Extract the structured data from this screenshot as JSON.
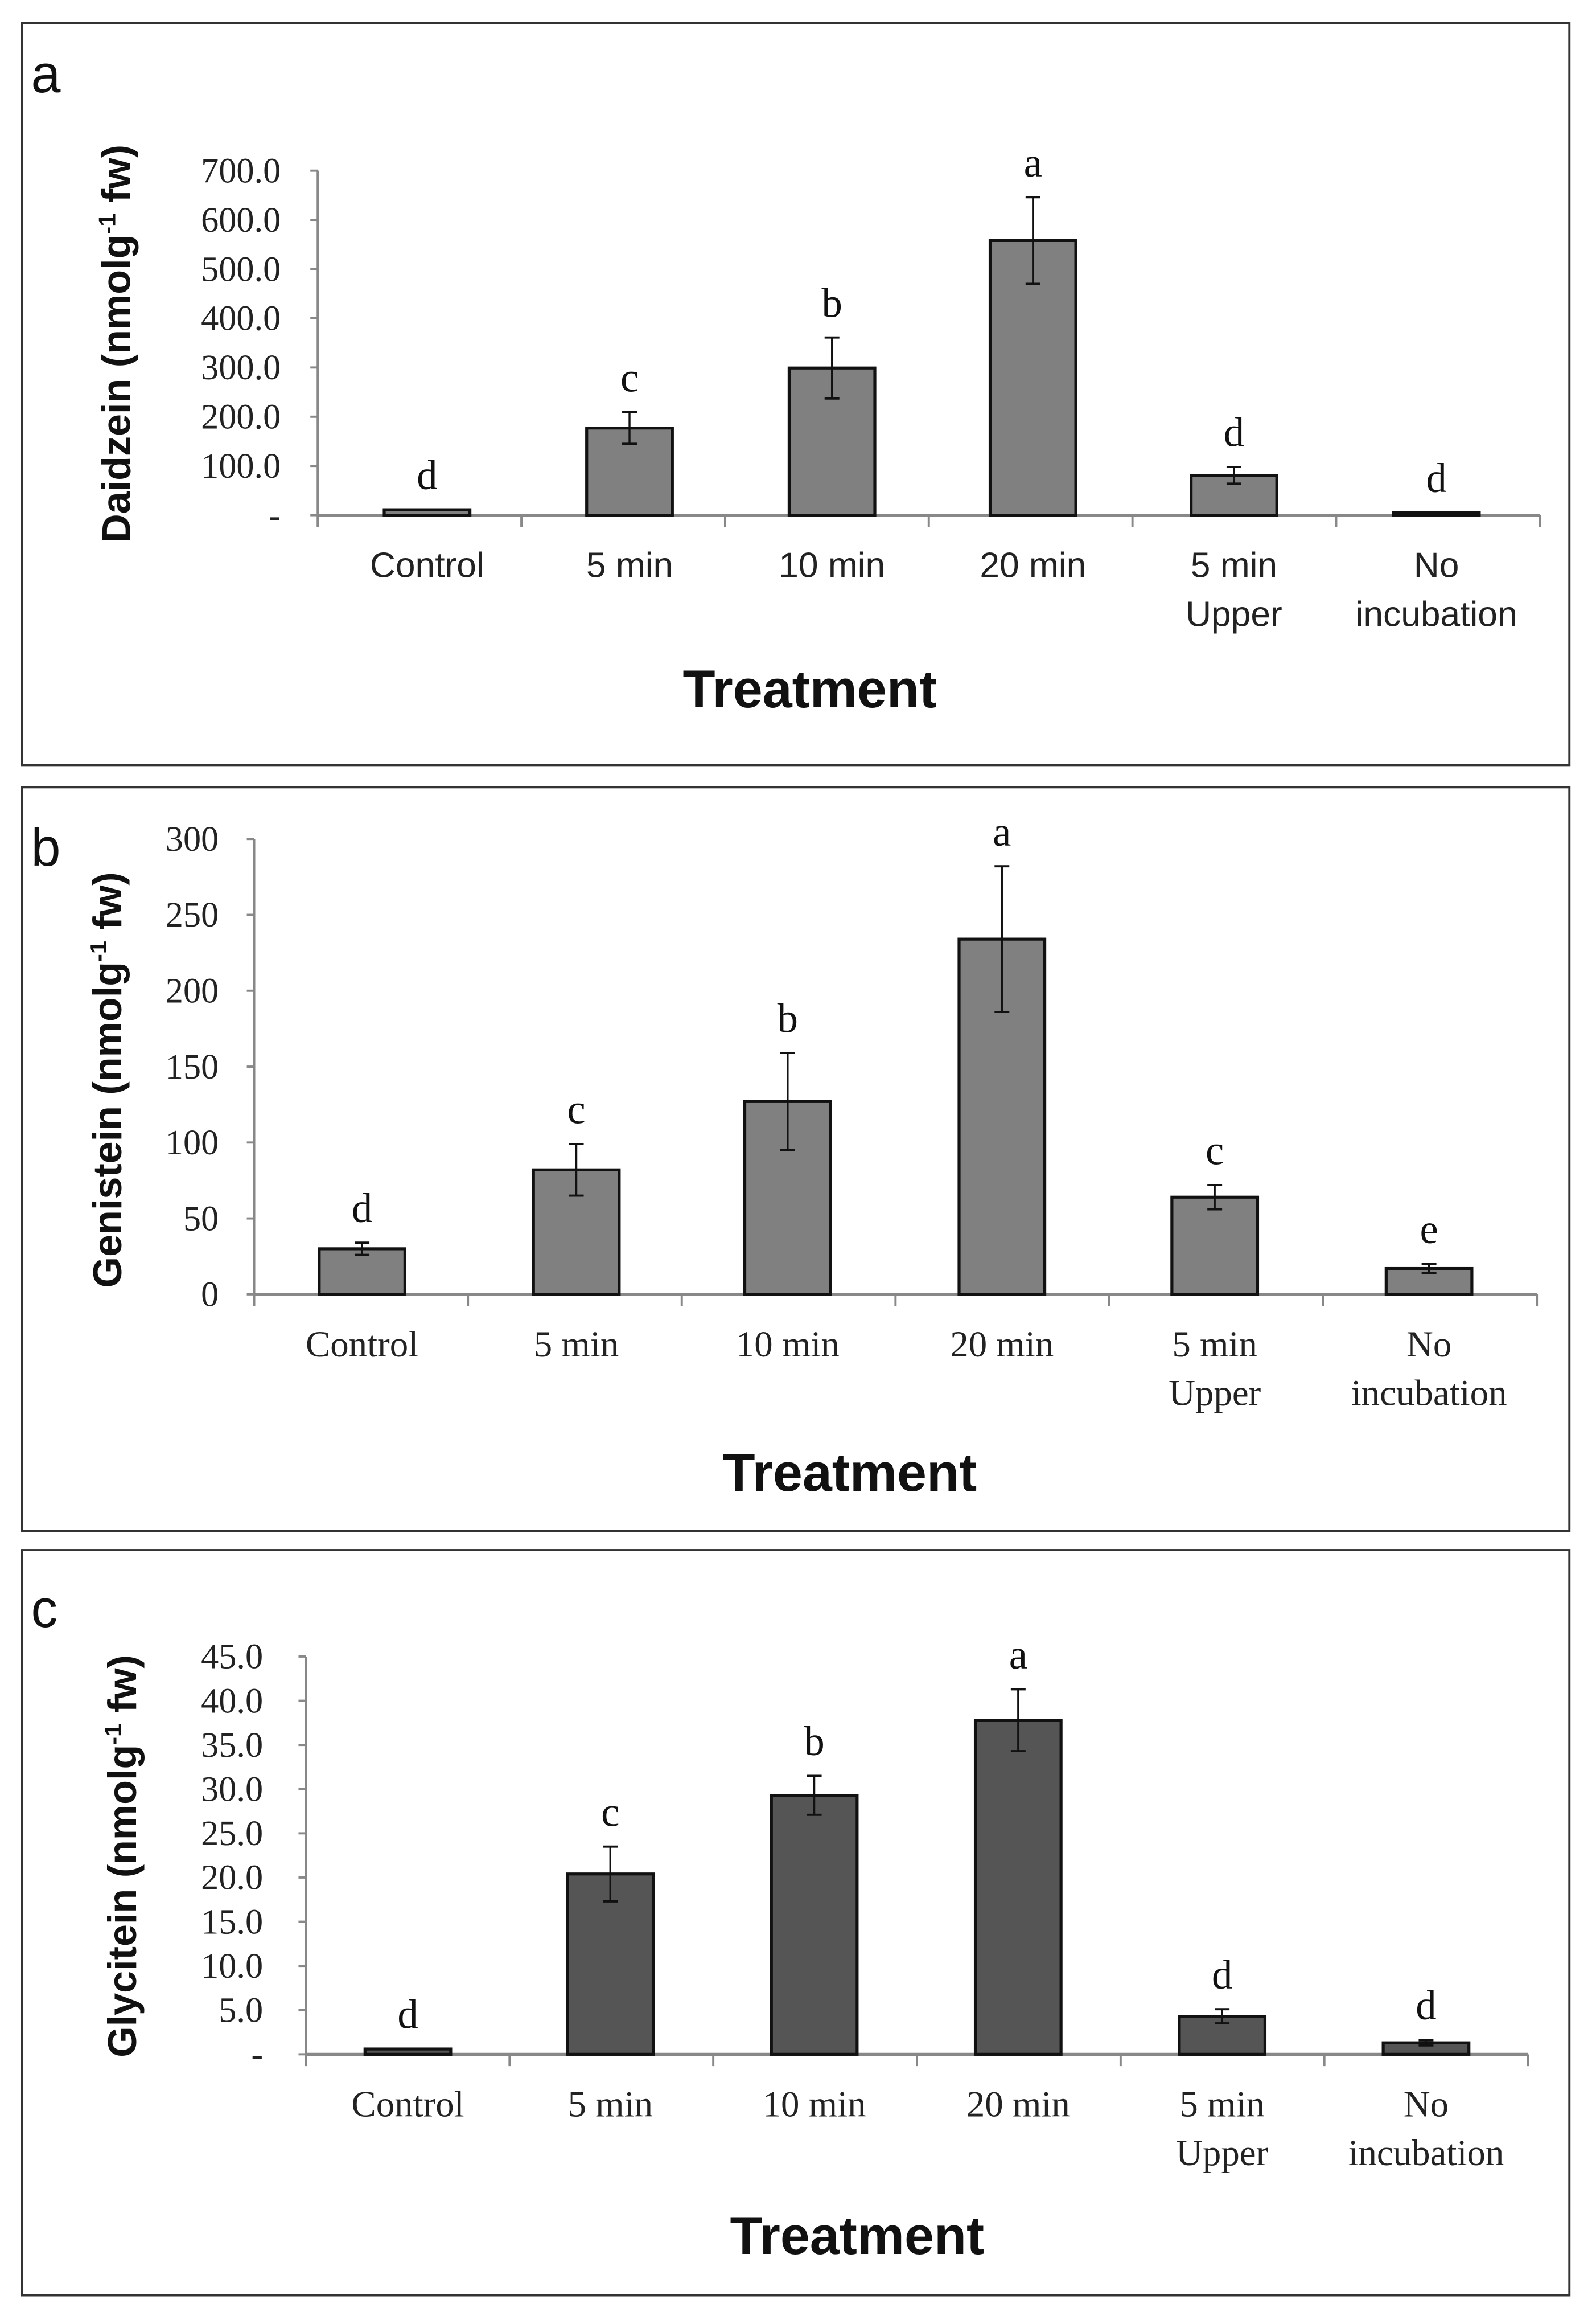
{
  "chart_data": [
    {
      "panel_label": "a",
      "type": "bar",
      "categories": [
        [
          "Control"
        ],
        [
          "5 min"
        ],
        [
          "10 min"
        ],
        [
          "20 min"
        ],
        [
          "5 min",
          "Upper"
        ],
        [
          "No",
          "incubation"
        ]
      ],
      "values": [
        11,
        177,
        299,
        558,
        81,
        5
      ],
      "errors": [
        0,
        32,
        62,
        88,
        17,
        0
      ],
      "significance": [
        "d",
        "c",
        "b",
        "a",
        "d",
        "d"
      ],
      "xlabel": "Treatment",
      "ylabel": "Daidzein (nmolg",
      "ylabel_sup": "-1",
      "ylabel_end": " fw)",
      "ylim": [
        0,
        700
      ],
      "yticks": [
        0,
        100,
        200,
        300,
        400,
        500,
        600,
        700
      ],
      "ytick_labels": [
        "-",
        "100.0",
        "200.0",
        "300.0",
        "400.0",
        "500.0",
        "600.0",
        "700.0"
      ],
      "bar_color": "#808080",
      "grid": false
    },
    {
      "panel_label": "b",
      "type": "bar",
      "categories": [
        [
          "Control"
        ],
        [
          "5 min"
        ],
        [
          "10 min"
        ],
        [
          "20 min"
        ],
        [
          "5 min",
          "Upper"
        ],
        [
          "No",
          "incubation"
        ]
      ],
      "values": [
        30,
        82,
        127,
        234,
        64,
        17
      ],
      "errors": [
        4,
        17,
        32,
        48,
        8,
        3
      ],
      "significance": [
        "d",
        "c",
        "b",
        "a",
        "c",
        "e"
      ],
      "xlabel": "Treatment",
      "ylabel": "Genistein (nmolg",
      "ylabel_sup": "-1",
      "ylabel_end": " fw)",
      "ylim": [
        0,
        300
      ],
      "yticks": [
        0,
        50,
        100,
        150,
        200,
        250,
        300
      ],
      "ytick_labels": [
        "0",
        "50",
        "100",
        "150",
        "200",
        "250",
        "300"
      ],
      "bar_color": "#808080",
      "grid": false
    },
    {
      "panel_label": "c",
      "type": "bar",
      "categories": [
        [
          "Control"
        ],
        [
          "5 min"
        ],
        [
          "10 min"
        ],
        [
          "20 min"
        ],
        [
          "5 min",
          "Upper"
        ],
        [
          "No",
          "incubation"
        ]
      ],
      "values": [
        0.6,
        20.4,
        29.3,
        37.8,
        4.3,
        1.3
      ],
      "errors": [
        0,
        3.1,
        2.2,
        3.5,
        0.8,
        0.3
      ],
      "significance": [
        "d",
        "c",
        "b",
        "a",
        "d",
        "d"
      ],
      "xlabel": "Treatment",
      "ylabel": "Glycitein (nmolg",
      "ylabel_sup": "-1",
      "ylabel_end": " fw)",
      "ylim": [
        0,
        45
      ],
      "yticks": [
        0,
        5,
        10,
        15,
        20,
        25,
        30,
        35,
        40,
        45
      ],
      "ytick_labels": [
        "-",
        "5.0",
        "10.0",
        "15.0",
        "20.0",
        "25.0",
        "30.0",
        "35.0",
        "40.0",
        "45.0"
      ],
      "bar_color": "#555555",
      "grid": false
    }
  ]
}
